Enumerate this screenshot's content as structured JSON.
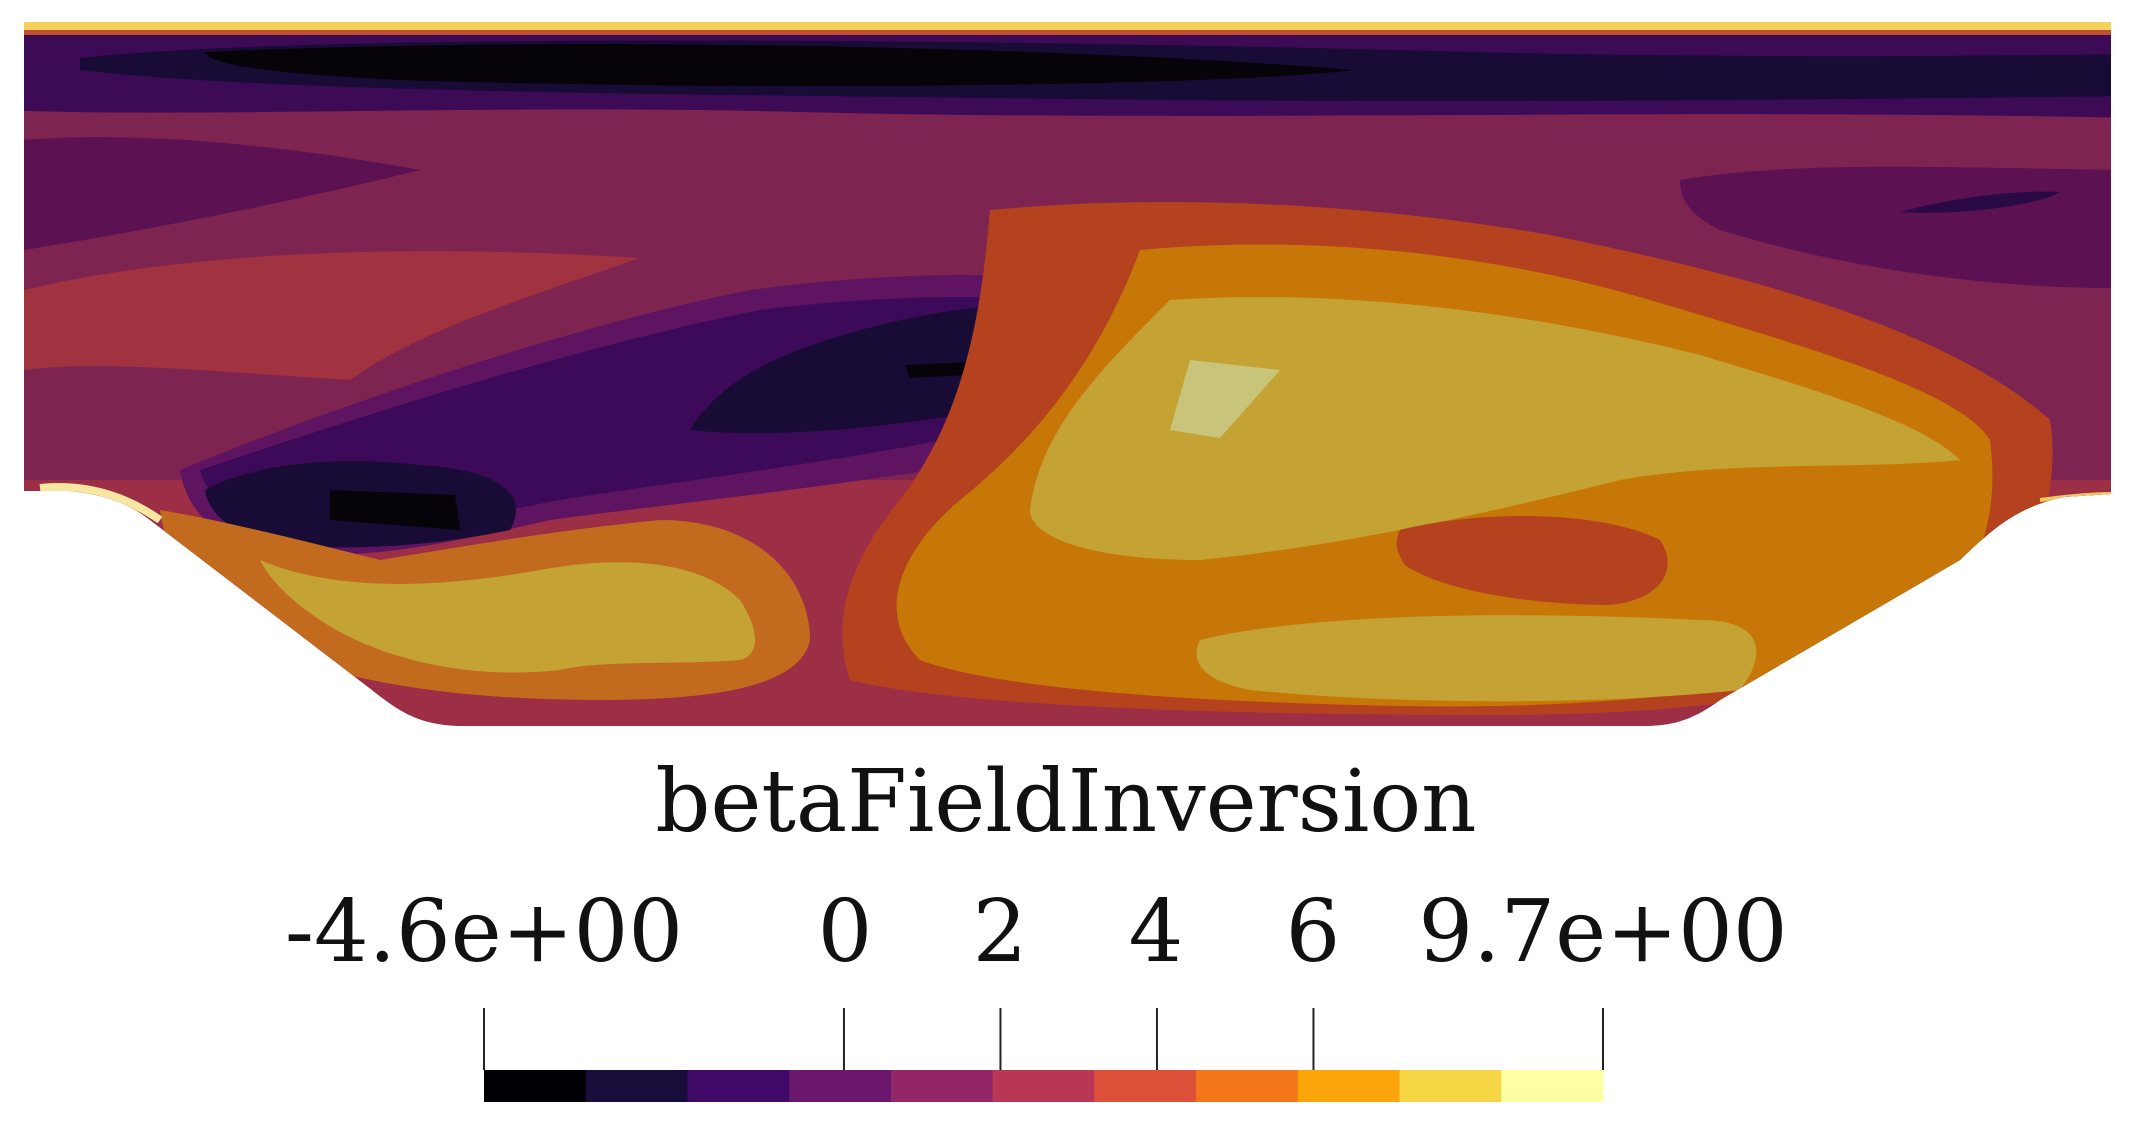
{
  "plot": {
    "title": "betaFieldInversion",
    "colormap": "inferno",
    "range": [
      -4.6,
      9.7
    ],
    "tick_labels": [
      {
        "label": "-4.6e+00",
        "value": -4.6
      },
      {
        "label": "0",
        "value": 0
      },
      {
        "label": "2",
        "value": 2
      },
      {
        "label": "4",
        "value": 4
      },
      {
        "label": "6",
        "value": 6
      },
      {
        "label": "9.7e+00",
        "value": 9.7
      }
    ],
    "colorbar_bins": [
      "#000004",
      "#170c3a",
      "#420a68",
      "#6b176e",
      "#932667",
      "#ba3655",
      "#dd513a",
      "#f3771a",
      "#fca50a",
      "#f6d644",
      "#fcffa4"
    ]
  }
}
